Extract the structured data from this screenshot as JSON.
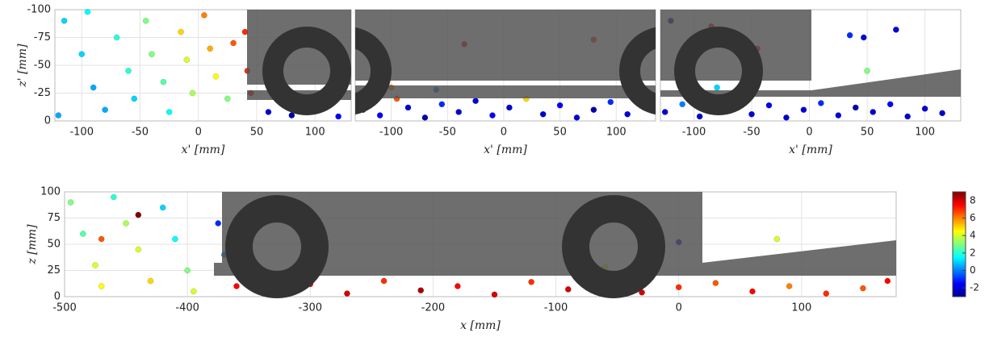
{
  "chart_data": [
    {
      "type": "scatter",
      "xlabel": "x' [mm]",
      "ylabel": "z' [mm]",
      "xlim": [
        -123,
        131
      ],
      "ylim": [
        0,
        -100
      ],
      "xticks": [
        -100,
        -50,
        0,
        50,
        100
      ],
      "yticks": [
        -100,
        -75,
        -50,
        -25,
        0
      ],
      "grid": true,
      "series": [
        {
          "x": [
            -115,
            -100,
            -90,
            -80,
            -70,
            -60,
            -55,
            -45,
            -40,
            -30,
            -25,
            -15,
            -10,
            -5,
            5,
            10,
            15,
            25,
            30,
            40,
            42,
            45,
            60,
            80,
            100,
            120,
            -120,
            -95
          ],
          "values": [
            -90,
            -60,
            -30,
            -10,
            -75,
            -45,
            -20,
            -90,
            -60,
            -35,
            -8,
            -80,
            -55,
            -25,
            -95,
            -65,
            -40,
            -20,
            -70,
            -80,
            -45,
            -25,
            -8,
            -5,
            -10,
            -4,
            -5,
            -98
          ],
          "c": [
            1,
            1,
            0.5,
            0.5,
            2,
            2,
            1,
            3,
            3,
            2.5,
            1.5,
            5,
            4,
            3.5,
            6,
            5.5,
            4.5,
            3,
            6.5,
            7,
            7,
            7.5,
            -2,
            -2.5,
            -2,
            -1.5,
            0.5,
            1.5
          ]
        }
      ]
    },
    {
      "type": "scatter",
      "xlabel": "x' [mm]",
      "xlim": [
        -132,
        135
      ],
      "ylim": [
        0,
        -100
      ],
      "xticks": [
        -100,
        -50,
        0,
        50,
        100
      ],
      "grid": true,
      "series": [
        {
          "x": [
            -125,
            -110,
            -95,
            -85,
            -70,
            -55,
            -40,
            -25,
            -10,
            5,
            20,
            35,
            50,
            65,
            80,
            95,
            110,
            125,
            -35,
            80,
            -100,
            -60
          ],
          "values": [
            -10,
            -5,
            -20,
            -12,
            -3,
            -15,
            -8,
            -18,
            -5,
            -12,
            -20,
            -6,
            -14,
            -3,
            -10,
            -17,
            -6,
            -12,
            -69,
            -73,
            -30,
            -28
          ],
          "c": [
            -2,
            -1.5,
            6.5,
            -2,
            -2.5,
            -1,
            -2,
            -2,
            -1.5,
            -2,
            5,
            -2,
            -1.5,
            -2,
            -2.5,
            -1,
            -2,
            -2,
            7.5,
            7,
            6,
            0
          ]
        }
      ]
    },
    {
      "type": "scatter",
      "xlabel": "x' [mm]",
      "xlim": [
        -129,
        131
      ],
      "ylim": [
        0,
        -100
      ],
      "xticks": [
        -100,
        -50,
        0,
        50,
        100
      ],
      "grid": true,
      "series": [
        {
          "x": [
            -125,
            -110,
            -95,
            -80,
            -65,
            -50,
            -35,
            -20,
            -5,
            10,
            25,
            40,
            55,
            70,
            85,
            100,
            115,
            -80,
            -55,
            -45,
            35,
            47,
            75,
            -120,
            50,
            -85
          ],
          "values": [
            -8,
            -15,
            -4,
            -12,
            -18,
            -6,
            -14,
            -3,
            -10,
            -16,
            -5,
            -12,
            -8,
            -15,
            -4,
            -11,
            -7,
            -30,
            -55,
            -65,
            -77,
            -75,
            -82,
            -90,
            -45,
            -85
          ],
          "c": [
            -2,
            0,
            -2,
            -1,
            5,
            -2,
            -1.5,
            -2,
            -2,
            -1,
            -2,
            -2.5,
            -2,
            -1.5,
            -2,
            -2,
            -2,
            1,
            7,
            7.5,
            -1,
            -2,
            -2,
            -2.5,
            3,
            7.5
          ]
        }
      ]
    },
    {
      "type": "scatter",
      "xlabel": "x [mm]",
      "ylabel": "z [mm]",
      "xlim": [
        -500,
        177
      ],
      "ylim": [
        0,
        100
      ],
      "xticks": [
        -500,
        -400,
        -300,
        -200,
        -100,
        0,
        100
      ],
      "yticks": [
        0,
        25,
        50,
        75,
        100
      ],
      "grid": true,
      "colorbar": {
        "lim": [
          -3,
          9
        ],
        "ticks": [
          -2,
          0,
          2,
          4,
          6,
          8
        ]
      },
      "series": [
        {
          "x": [
            -495,
            -485,
            -475,
            -470,
            -460,
            -450,
            -440,
            -430,
            -420,
            -410,
            -400,
            -395,
            -470,
            -440,
            -375,
            -370,
            -360,
            -330,
            -300,
            -270,
            -240,
            -210,
            -180,
            -150,
            -120,
            -90,
            -60,
            -30,
            0,
            30,
            60,
            90,
            120,
            150,
            170,
            0,
            -60,
            80
          ],
          "values": [
            90,
            60,
            30,
            10,
            95,
            70,
            45,
            15,
            85,
            55,
            25,
            5,
            55,
            78,
            70,
            40,
            10,
            5,
            12,
            3,
            15,
            6,
            10,
            2,
            14,
            7,
            12,
            4,
            9,
            13,
            5,
            10,
            3,
            8,
            15,
            52,
            28,
            55
          ],
          "c": [
            3,
            2.5,
            4,
            4.5,
            2,
            3.5,
            4,
            5,
            1,
            1.5,
            3,
            4,
            6.5,
            9,
            -1,
            0,
            7.5,
            8,
            7.5,
            8,
            7,
            8.5,
            7.5,
            8,
            7,
            8,
            7.5,
            8,
            7,
            6.5,
            7.5,
            6,
            7,
            6.5,
            7.5,
            -2,
            4,
            4
          ]
        }
      ]
    }
  ]
}
